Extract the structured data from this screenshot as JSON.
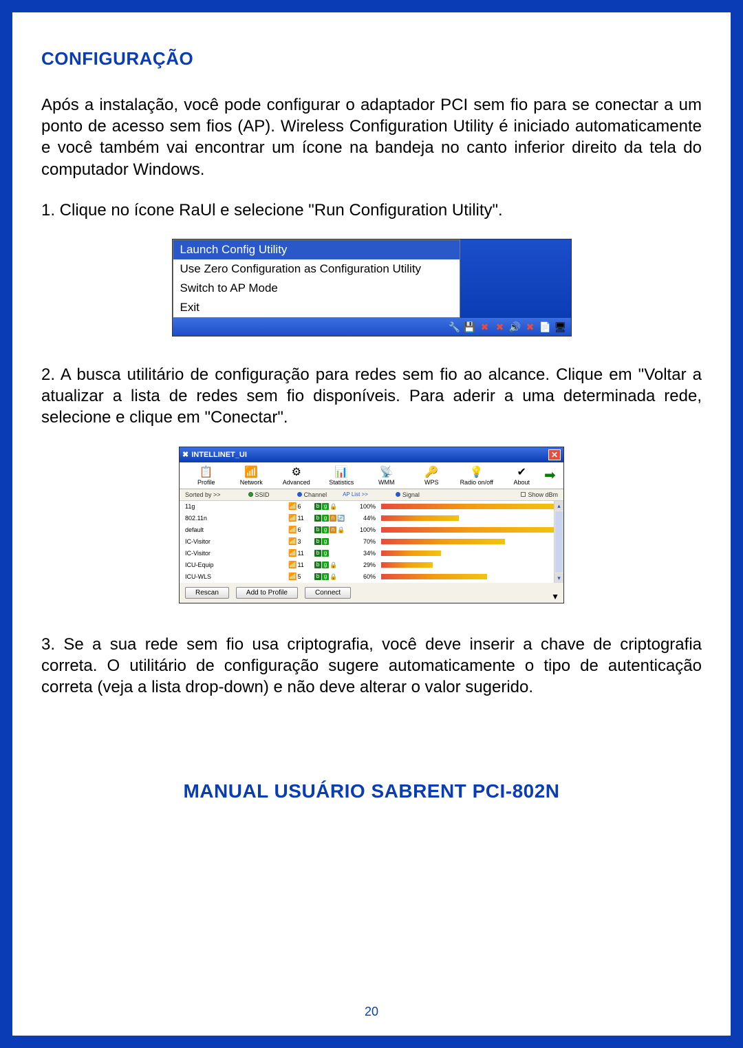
{
  "section_title": "CONFIGURAÇÃO",
  "intro": "Após a instalação, você pode configurar o adaptador PCI sem fio para se conectar a um ponto de acesso sem fios (AP). Wireless Configuration Utility é iniciado automaticamente e você também vai encontrar um ícone na bandeja no canto inferior direito da tela do computador Windows.",
  "step1": "1. Clique no ícone RaUl e selecione \"Run Configuration Utility\".",
  "step2": "2. A busca utilitário de configuração para redes sem fio ao alcance. Clique em \"Voltar a atualizar a lista de redes sem fio disponíveis. Para aderir a uma determinada rede, selecione e clique em \"Conectar\".",
  "step3": "3. Se a sua rede sem fio usa criptografia, você deve inserir a chave de criptografia correta. O utilitário de configuração sugere automaticamente o tipo de autenticação correta (veja a lista drop-down) e não deve alterar o valor sugerido.",
  "footer_title": "MANUAL USUÁRIO SABRENT PCI-802N",
  "page_number": "20",
  "menu": {
    "items": [
      "Launch Config Utility",
      "Use Zero Configuration as Configuration Utility",
      "Switch to AP Mode",
      "Exit"
    ],
    "selected_index": 0
  },
  "utility": {
    "title": "INTELLINET_UI",
    "tabs": [
      "Profile",
      "Network",
      "Advanced",
      "Statistics",
      "WMM",
      "WPS",
      "Radio on/off",
      "About"
    ],
    "tab_icons": [
      "📋",
      "📶",
      "⚙",
      "📊",
      "📡",
      "🔑",
      "💡",
      "✔"
    ],
    "sortbar": {
      "sorted_by": "Sorted by >>",
      "ssid": "SSID",
      "channel": "Channel",
      "signal": "Signal",
      "show_dbm": "Show dBm",
      "ap_list": "AP List >>"
    },
    "networks": [
      {
        "ssid": "11g",
        "ch": "6",
        "modes": [
          "b",
          "g"
        ],
        "lock": true,
        "pct": "100%",
        "bar": 100
      },
      {
        "ssid": "802.11n",
        "ch": "11",
        "modes": [
          "b",
          "g",
          "n"
        ],
        "lock": false,
        "extra": "🔄",
        "pct": "44%",
        "bar": 44
      },
      {
        "ssid": "default",
        "ch": "6",
        "modes": [
          "b",
          "g",
          "n"
        ],
        "lock": true,
        "pct": "100%",
        "bar": 100
      },
      {
        "ssid": "IC-Visitor",
        "ch": "3",
        "modes": [
          "b",
          "g"
        ],
        "lock": false,
        "pct": "70%",
        "bar": 70
      },
      {
        "ssid": "IC-Visitor",
        "ch": "11",
        "modes": [
          "b",
          "g"
        ],
        "lock": false,
        "pct": "34%",
        "bar": 34
      },
      {
        "ssid": "ICU-Equip",
        "ch": "11",
        "modes": [
          "b",
          "g"
        ],
        "lock": true,
        "pct": "29%",
        "bar": 29
      },
      {
        "ssid": "ICU-WLS",
        "ch": "5",
        "modes": [
          "b",
          "g"
        ],
        "lock": true,
        "pct": "60%",
        "bar": 60
      }
    ],
    "buttons": {
      "rescan": "Rescan",
      "add": "Add to Profile",
      "connect": "Connect"
    }
  },
  "colors": {
    "brand": "#0a3db5",
    "bar_gradient": [
      "#e74c3c",
      "#f39c12",
      "#f1c40f"
    ]
  }
}
